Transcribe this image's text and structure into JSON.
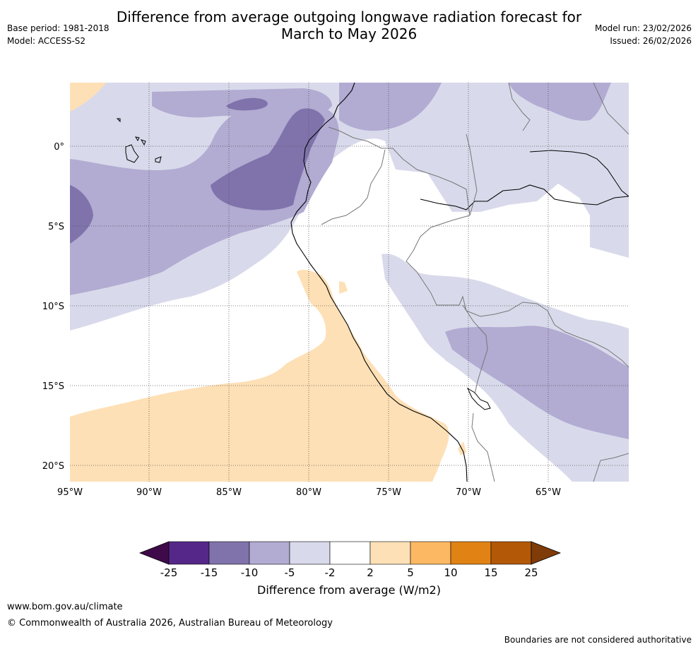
{
  "title": {
    "line1": "Difference from average outgoing longwave radiation forecast for",
    "line2": "March to May 2026"
  },
  "meta": {
    "base_period": "Base period: 1981-2018",
    "model": "Model: ACCESS-S2",
    "model_run": "Model run: 23/02/2026",
    "issued": "Issued: 26/02/2026"
  },
  "map": {
    "lon_ticks": [
      "95°W",
      "90°W",
      "85°W",
      "80°W",
      "75°W",
      "70°W",
      "65°W"
    ],
    "lat_ticks": [
      "0°",
      "5°S",
      "10°S",
      "15°S",
      "20°S"
    ]
  },
  "legend": {
    "ticks": [
      "-25",
      "-15",
      "-10",
      "-5",
      "-2",
      "2",
      "5",
      "10",
      "15",
      "25"
    ],
    "colors": [
      "#3f0a4a",
      "#542788",
      "#8073ac",
      "#b2abd2",
      "#d8daeb",
      "#ffffff",
      "#fee0b6",
      "#fdb863",
      "#e08214",
      "#b35806",
      "#7f3b08"
    ],
    "label": "Difference from average (W/m2)"
  },
  "footer": {
    "url": "www.bom.gov.au/climate",
    "copyright": "© Commonwealth of Australia 2026, Australian Bureau of Meteorology",
    "disclaimer": "Boundaries are not considered authoritative"
  }
}
